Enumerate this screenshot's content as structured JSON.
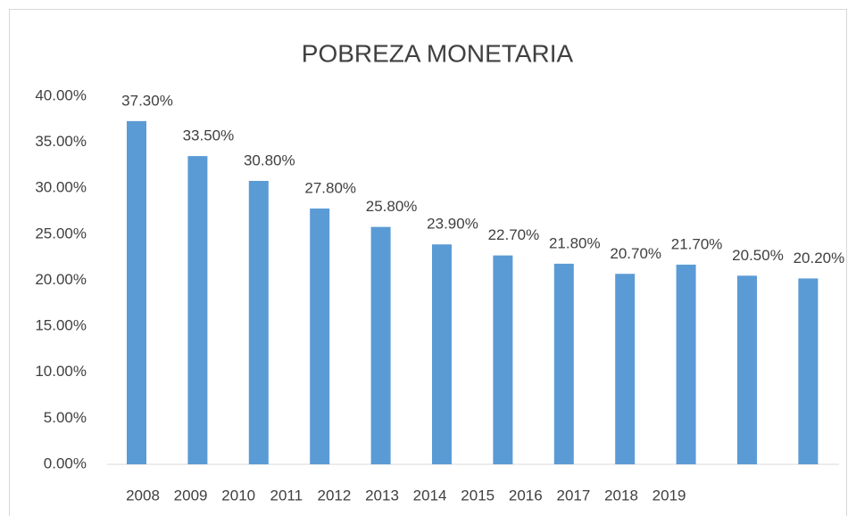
{
  "chart_data": {
    "type": "bar",
    "title": "POBREZA MONETARIA",
    "categories": [
      "2008",
      "2009",
      "2010",
      "2011",
      "2012",
      "2013",
      "2014",
      "2015",
      "2016",
      "2017",
      "2018",
      "2019"
    ],
    "values": [
      37.3,
      33.5,
      30.8,
      27.8,
      25.8,
      23.9,
      22.7,
      21.8,
      20.7,
      21.7,
      20.5,
      20.2
    ],
    "value_labels": [
      "37.30%",
      "33.50%",
      "30.80%",
      "27.80%",
      "25.80%",
      "23.90%",
      "22.70%",
      "21.80%",
      "20.70%",
      "21.70%",
      "20.50%",
      "20.20%"
    ],
    "color": "#5b9bd5",
    "ylim": [
      0,
      40
    ],
    "yticks": [
      {
        "value": 0,
        "label": "0.00%"
      },
      {
        "value": 5,
        "label": "5.00%"
      },
      {
        "value": 10,
        "label": "10.00%"
      },
      {
        "value": 15,
        "label": "15.00%"
      },
      {
        "value": 20,
        "label": "20.00%"
      },
      {
        "value": 25,
        "label": "25.00%"
      },
      {
        "value": 30,
        "label": "30.00%"
      },
      {
        "value": 35,
        "label": "35.00%"
      },
      {
        "value": 40,
        "label": "40.00%"
      }
    ],
    "grid": false
  }
}
